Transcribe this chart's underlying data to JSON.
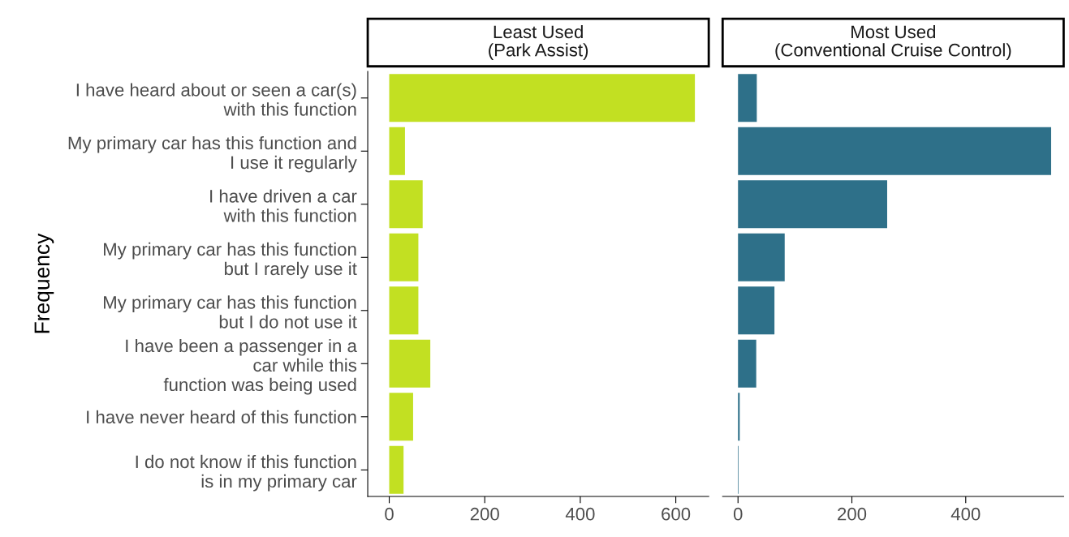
{
  "chart_data": [
    {
      "type": "bar",
      "orientation": "horizontal",
      "title": "Least Used\n(Park Assist)",
      "ylabel": "Frequency",
      "categories": [
        "I have heard about or seen a car(s)\nwith this function",
        "My primary car has this function and\nI use it regularly",
        "I have driven a car\nwith this function",
        "My primary car has this function\nbut I rarely use it",
        "My primary car has this function\nbut I do not use it",
        "I have been a passenger in a\ncar while this\nfunction was being used",
        "I have never heard of this function",
        "I do not know if this function\nis in my primary car"
      ],
      "values": [
        640,
        33,
        70,
        61,
        61,
        86,
        50,
        30
      ],
      "color": "#c2e022",
      "xlim": [
        -45,
        669
      ],
      "xticks": [
        0,
        200,
        400,
        600
      ],
      "grid": false
    },
    {
      "type": "bar",
      "orientation": "horizontal",
      "title": "Most Used\n(Conventional Cruise Control)",
      "categories": [
        null,
        null,
        null,
        null,
        null,
        null,
        null,
        null
      ],
      "values": [
        33,
        550,
        262,
        82,
        64,
        32,
        3,
        1
      ],
      "color": "#2e7089",
      "xlim": [
        -27,
        572
      ],
      "xticks": [
        0,
        200,
        400
      ],
      "tick_labels": "x",
      "grid": false
    }
  ]
}
